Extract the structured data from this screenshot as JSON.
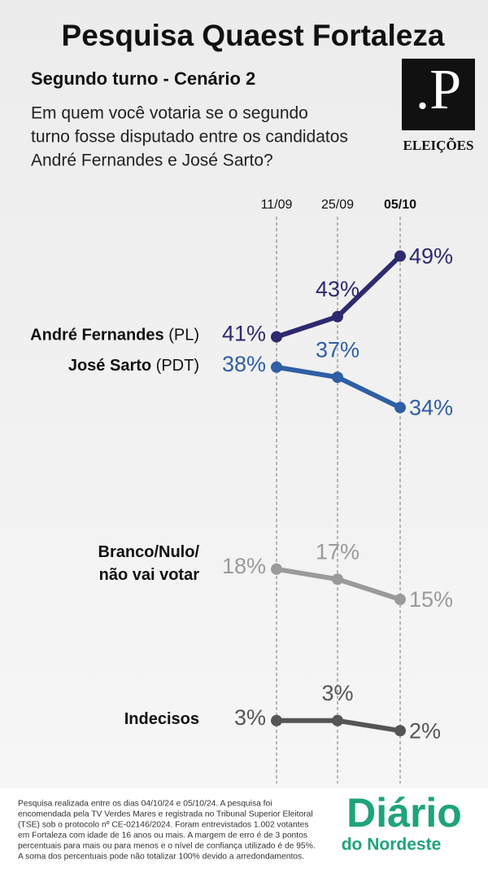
{
  "header": {
    "title": "Pesquisa Quaest Fortaleza",
    "subtitle": "Segundo turno - Cenário 2",
    "question": [
      "Em quem você votaria se o segundo",
      "turno fosse disputado entre os candidatos",
      "André Fernandes e José Sarto?"
    ],
    "logo_mark": ".P",
    "logo_text": "ELEIÇÕES"
  },
  "chart_data": {
    "type": "line",
    "categories": [
      "11/09",
      "25/09",
      "05/10"
    ],
    "ylim": [
      0,
      50
    ],
    "series": [
      {
        "name": "André Fernandes",
        "party": "(PL)",
        "color": "#2e2a6e",
        "values": [
          41,
          43,
          49
        ],
        "value_labels": [
          "41%",
          "43%",
          "49%"
        ]
      },
      {
        "name": "José Sarto",
        "party": "(PDT)",
        "color": "#2f5fa5",
        "values": [
          38,
          37,
          34
        ],
        "value_labels": [
          "38%",
          "37%",
          "34%"
        ]
      },
      {
        "name": [
          "Branco/Nulo/",
          "não vai votar"
        ],
        "color": "#9a9a9a",
        "values": [
          18,
          17,
          15
        ],
        "value_labels": [
          "18%",
          "17%",
          "15%"
        ]
      },
      {
        "name": "Indecisos",
        "color": "#555555",
        "values": [
          3,
          3,
          2
        ],
        "value_labels": [
          "3%",
          "3%",
          "2%"
        ]
      }
    ]
  },
  "footer": {
    "note": [
      "Pesquisa realizada entre os dias 04/10/24 e 05/10/24. A pesquisa foi",
      "encomendada pela TV Verdes Mares e registrada no Tribunal Superior Eleitoral",
      "(TSE) sob o protocolo nº CE-02146/2024. Foram entrevistados 1.002 votantes",
      "em Fortaleza com idade de 16 anos ou mais. A margem de erro é de 3 pontos",
      "percentuais para mais ou para menos e o nível de confiança utilizado é de 95%.",
      "A soma dos percentuais pode não totalizar 100% devido a arredondamentos."
    ],
    "brand": "Diário",
    "brand_sub": "do Nordeste"
  }
}
